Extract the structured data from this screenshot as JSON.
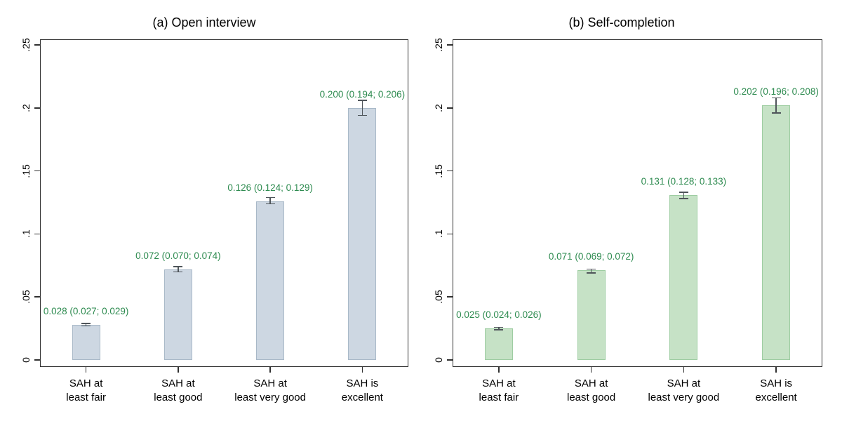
{
  "figure": {
    "background": "#ffffff",
    "text_color": "#000000",
    "axis_color": "#303030",
    "error_bar_color": "#4f555a",
    "value_label_color": "#2e8b50"
  },
  "chart_data": [
    {
      "type": "bar",
      "title": "(a) Open interview",
      "categories": [
        "SAH at\nleast fair",
        "SAH at\nleast good",
        "SAH at\nleast very good",
        "SAH is\nexcellent"
      ],
      "values": [
        0.028,
        0.072,
        0.126,
        0.2
      ],
      "ci_low": [
        0.027,
        0.07,
        0.124,
        0.194
      ],
      "ci_high": [
        0.029,
        0.074,
        0.129,
        0.206
      ],
      "value_labels": [
        "0.028 (0.027; 0.029)",
        "0.072 (0.070; 0.074)",
        "0.126 (0.124; 0.129)",
        "0.200 (0.194; 0.206)"
      ],
      "bar_fill": "#cdd7e2",
      "bar_border": "#a9b9c8",
      "xlabel": "",
      "ylabel": "",
      "ylim": [
        0,
        0.25
      ],
      "yticks": [
        0,
        0.05,
        0.1,
        0.15,
        0.2,
        0.25
      ],
      "ytick_labels": [
        "0",
        ".05",
        ".1",
        ".15",
        ".2",
        ".25"
      ],
      "grid": false,
      "legend": "none"
    },
    {
      "type": "bar",
      "title": "(b) Self-completion",
      "categories": [
        "SAH at\nleast fair",
        "SAH at\nleast good",
        "SAH at\nleast very good",
        "SAH is\nexcellent"
      ],
      "values": [
        0.025,
        0.071,
        0.131,
        0.202
      ],
      "ci_low": [
        0.024,
        0.069,
        0.128,
        0.196
      ],
      "ci_high": [
        0.026,
        0.072,
        0.133,
        0.208
      ],
      "value_labels": [
        "0.025 (0.024; 0.026)",
        "0.071 (0.069; 0.072)",
        "0.131 (0.128; 0.133)",
        "0.202 (0.196; 0.208)"
      ],
      "bar_fill": "#c6e2c6",
      "bar_border": "#9ecda2",
      "xlabel": "",
      "ylabel": "",
      "ylim": [
        0,
        0.25
      ],
      "yticks": [
        0,
        0.05,
        0.1,
        0.15,
        0.2,
        0.25
      ],
      "ytick_labels": [
        "0",
        ".05",
        ".1",
        ".15",
        ".2",
        ".25"
      ],
      "grid": false,
      "legend": "none"
    }
  ]
}
